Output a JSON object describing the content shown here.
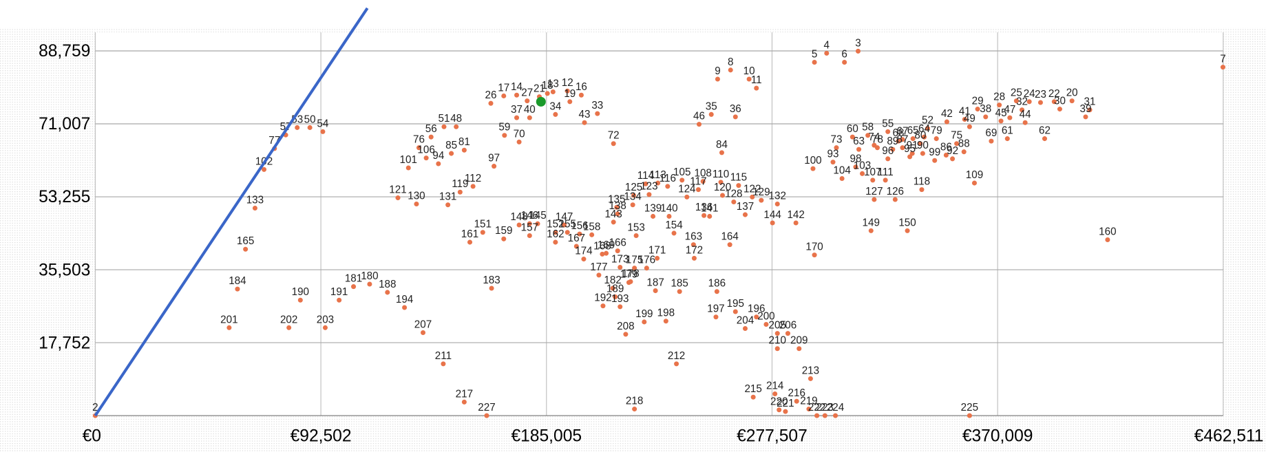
{
  "chart_data": {
    "type": "scatter",
    "color": "#e8734a",
    "grid": true,
    "xlim": [
      0,
      462511
    ],
    "ylim": [
      0,
      88759
    ],
    "xticks": [
      0,
      {
        "value": 92502,
        "label": "€92,502"
      },
      {
        "value": 185005,
        "label": "€185,005"
      },
      {
        "value": 277507,
        "label": "€277,507"
      },
      {
        "value": 370009,
        "label": "€370,009"
      },
      {
        "value": 462511,
        "label": "€462,511"
      }
    ],
    "xtick_zero_label": "€0",
    "yticks": [
      {
        "value": 17752,
        "label": "17,752"
      },
      {
        "value": 35503,
        "label": "35,503"
      },
      {
        "value": 53255,
        "label": "53,255"
      },
      {
        "value": 71007,
        "label": "71,007"
      },
      {
        "value": 88759,
        "label": "88,759"
      }
    ],
    "points": [
      {
        "label": "2",
        "x": 0,
        "y": 0
      },
      {
        "label": "201",
        "x": 54900,
        "y": 21400
      },
      {
        "label": "184",
        "x": 58300,
        "y": 30800
      },
      {
        "label": "165",
        "x": 61600,
        "y": 40500
      },
      {
        "label": "133",
        "x": 65500,
        "y": 50500
      },
      {
        "label": "102",
        "x": 69200,
        "y": 59900
      },
      {
        "label": "77",
        "x": 73500,
        "y": 65000
      },
      {
        "label": "57",
        "x": 78100,
        "y": 68300
      },
      {
        "label": "53",
        "x": 82800,
        "y": 70100
      },
      {
        "label": "50",
        "x": 88000,
        "y": 70100
      },
      {
        "label": "54",
        "x": 93300,
        "y": 69100
      },
      {
        "label": "202",
        "x": 79400,
        "y": 21400
      },
      {
        "label": "190",
        "x": 84100,
        "y": 28100
      },
      {
        "label": "203",
        "x": 94300,
        "y": 21400
      },
      {
        "label": "191",
        "x": 100000,
        "y": 28100
      },
      {
        "label": "181",
        "x": 105900,
        "y": 31400
      },
      {
        "label": "180",
        "x": 112500,
        "y": 32000
      },
      {
        "label": "188",
        "x": 119800,
        "y": 30000
      },
      {
        "label": "194",
        "x": 126800,
        "y": 26300
      },
      {
        "label": "207",
        "x": 134400,
        "y": 20200
      },
      {
        "label": "211",
        "x": 142700,
        "y": 12600
      },
      {
        "label": "217",
        "x": 151300,
        "y": 3300
      },
      {
        "label": "227",
        "x": 160500,
        "y": 0
      },
      {
        "label": "121",
        "x": 124100,
        "y": 53000
      },
      {
        "label": "130",
        "x": 131700,
        "y": 51500
      },
      {
        "label": "101",
        "x": 128400,
        "y": 60300
      },
      {
        "label": "106",
        "x": 135700,
        "y": 62700
      },
      {
        "label": "76",
        "x": 132700,
        "y": 65200
      },
      {
        "label": "56",
        "x": 137700,
        "y": 67800
      },
      {
        "label": "51",
        "x": 143000,
        "y": 70300
      },
      {
        "label": "48",
        "x": 148000,
        "y": 70300
      },
      {
        "label": "94",
        "x": 140700,
        "y": 61300
      },
      {
        "label": "85",
        "x": 146000,
        "y": 63800
      },
      {
        "label": "81",
        "x": 151300,
        "y": 64600
      },
      {
        "label": "131",
        "x": 144600,
        "y": 51300
      },
      {
        "label": "119",
        "x": 149600,
        "y": 54400
      },
      {
        "label": "112",
        "x": 154900,
        "y": 55800
      },
      {
        "label": "97",
        "x": 163500,
        "y": 60700
      },
      {
        "label": "161",
        "x": 153600,
        "y": 42200
      },
      {
        "label": "151",
        "x": 158900,
        "y": 44600
      },
      {
        "label": "159",
        "x": 167500,
        "y": 43000
      },
      {
        "label": "183",
        "x": 162500,
        "y": 31000
      },
      {
        "label": "26",
        "x": 162200,
        "y": 76000
      },
      {
        "label": "17",
        "x": 167500,
        "y": 77800
      },
      {
        "label": "14",
        "x": 172800,
        "y": 78000
      },
      {
        "label": "27",
        "x": 177100,
        "y": 76600
      },
      {
        "label": "37",
        "x": 172800,
        "y": 72500
      },
      {
        "label": "40",
        "x": 178100,
        "y": 72500
      },
      {
        "label": "59",
        "x": 167800,
        "y": 68200
      },
      {
        "label": "70",
        "x": 173800,
        "y": 66600
      },
      {
        "label": "21",
        "x": 182100,
        "y": 77600
      },
      {
        "label": "18",
        "x": 185400,
        "y": 78400
      },
      {
        "label": "13",
        "x": 187700,
        "y": 78800
      },
      {
        "label": "12",
        "x": 193600,
        "y": 79000
      },
      {
        "label": "19",
        "x": 194600,
        "y": 76400
      },
      {
        "label": "16",
        "x": 199300,
        "y": 78000
      },
      {
        "label": "34",
        "x": 188700,
        "y": 73300
      },
      {
        "label": "43",
        "x": 200600,
        "y": 71300
      },
      {
        "label": "33",
        "x": 205900,
        "y": 73500
      },
      {
        "label": "72",
        "x": 212500,
        "y": 66200
      },
      {
        "label": "148",
        "x": 173800,
        "y": 46400
      },
      {
        "label": "146",
        "x": 178100,
        "y": 46700
      },
      {
        "label": "145",
        "x": 181400,
        "y": 46700
      },
      {
        "label": "157",
        "x": 178100,
        "y": 43800
      },
      {
        "label": "147",
        "x": 192300,
        "y": 46400
      },
      {
        "label": "152",
        "x": 188700,
        "y": 44600
      },
      {
        "label": "162",
        "x": 188700,
        "y": 42200
      },
      {
        "label": "155",
        "x": 193600,
        "y": 44600
      },
      {
        "label": "156",
        "x": 198600,
        "y": 44200
      },
      {
        "label": "158",
        "x": 203600,
        "y": 44000
      },
      {
        "label": "167",
        "x": 197300,
        "y": 41200
      },
      {
        "label": "143",
        "x": 212500,
        "y": 47100
      },
      {
        "label": "174",
        "x": 200300,
        "y": 38100
      },
      {
        "label": "168",
        "x": 207900,
        "y": 39300
      },
      {
        "label": "169",
        "x": 209500,
        "y": 39500
      },
      {
        "label": "166",
        "x": 214200,
        "y": 40100
      },
      {
        "label": "173",
        "x": 215200,
        "y": 36100
      },
      {
        "label": "177",
        "x": 206500,
        "y": 34200
      },
      {
        "label": "135",
        "x": 213800,
        "y": 50700
      },
      {
        "label": "138",
        "x": 214200,
        "y": 49100
      },
      {
        "label": "134",
        "x": 220400,
        "y": 51300
      },
      {
        "label": "125",
        "x": 220800,
        "y": 53600
      },
      {
        "label": "123",
        "x": 227100,
        "y": 53800
      },
      {
        "label": "153",
        "x": 221800,
        "y": 43800
      },
      {
        "label": "171",
        "x": 230400,
        "y": 38300
      },
      {
        "label": "175",
        "x": 221100,
        "y": 35900
      },
      {
        "label": "176",
        "x": 226100,
        "y": 35900
      },
      {
        "label": "182",
        "x": 212200,
        "y": 31000
      },
      {
        "label": "178",
        "x": 219500,
        "y": 32600
      },
      {
        "label": "179",
        "x": 218800,
        "y": 32400
      },
      {
        "label": "189",
        "x": 213200,
        "y": 28900
      },
      {
        "label": "192",
        "x": 208200,
        "y": 26700
      },
      {
        "label": "193",
        "x": 215200,
        "y": 26500
      },
      {
        "label": "187",
        "x": 229700,
        "y": 30400
      },
      {
        "label": "185",
        "x": 239600,
        "y": 30200
      },
      {
        "label": "186",
        "x": 254900,
        "y": 30200
      },
      {
        "label": "199",
        "x": 225100,
        "y": 22800
      },
      {
        "label": "198",
        "x": 234000,
        "y": 23000
      },
      {
        "label": "208",
        "x": 217500,
        "y": 19800
      },
      {
        "label": "212",
        "x": 238300,
        "y": 12600
      },
      {
        "label": "218",
        "x": 221100,
        "y": 1600
      },
      {
        "label": "114",
        "x": 225700,
        "y": 56400
      },
      {
        "label": "113",
        "x": 230700,
        "y": 56600
      },
      {
        "label": "116",
        "x": 234700,
        "y": 55800
      },
      {
        "label": "124",
        "x": 242600,
        "y": 53200
      },
      {
        "label": "139",
        "x": 228700,
        "y": 48500
      },
      {
        "label": "140",
        "x": 235300,
        "y": 48500
      },
      {
        "label": "154",
        "x": 237300,
        "y": 44400
      },
      {
        "label": "163",
        "x": 245300,
        "y": 41600
      },
      {
        "label": "172",
        "x": 245600,
        "y": 38300
      },
      {
        "label": "105",
        "x": 240600,
        "y": 57300
      },
      {
        "label": "117",
        "x": 247300,
        "y": 55000
      },
      {
        "label": "108",
        "x": 249200,
        "y": 57000
      },
      {
        "label": "110",
        "x": 256500,
        "y": 56800
      },
      {
        "label": "120",
        "x": 257200,
        "y": 53600
      },
      {
        "label": "128",
        "x": 261800,
        "y": 52000
      },
      {
        "label": "115",
        "x": 263800,
        "y": 56000
      },
      {
        "label": "136",
        "x": 249600,
        "y": 48700
      },
      {
        "label": "141",
        "x": 251900,
        "y": 48500
      },
      {
        "label": "137",
        "x": 266500,
        "y": 48900
      },
      {
        "label": "122",
        "x": 269400,
        "y": 53200
      },
      {
        "label": "129",
        "x": 273100,
        "y": 52400
      },
      {
        "label": "132",
        "x": 279700,
        "y": 51500
      },
      {
        "label": "144",
        "x": 277700,
        "y": 46900
      },
      {
        "label": "142",
        "x": 287300,
        "y": 46900
      },
      {
        "label": "164",
        "x": 260200,
        "y": 41600
      },
      {
        "label": "170",
        "x": 294900,
        "y": 39100
      },
      {
        "label": "197",
        "x": 254500,
        "y": 24000
      },
      {
        "label": "195",
        "x": 262500,
        "y": 25300
      },
      {
        "label": "196",
        "x": 271100,
        "y": 24000
      },
      {
        "label": "204",
        "x": 266500,
        "y": 21200
      },
      {
        "label": "200",
        "x": 275100,
        "y": 22200
      },
      {
        "label": "205",
        "x": 279700,
        "y": 20000
      },
      {
        "label": "206",
        "x": 284000,
        "y": 20000
      },
      {
        "label": "210",
        "x": 279700,
        "y": 16300
      },
      {
        "label": "209",
        "x": 288600,
        "y": 16300
      },
      {
        "label": "213",
        "x": 293300,
        "y": 9000
      },
      {
        "label": "215",
        "x": 269800,
        "y": 4500
      },
      {
        "label": "214",
        "x": 278700,
        "y": 5300
      },
      {
        "label": "216",
        "x": 287600,
        "y": 3500
      },
      {
        "label": "220",
        "x": 280400,
        "y": 1400
      },
      {
        "label": "221",
        "x": 283000,
        "y": 1000
      },
      {
        "label": "219",
        "x": 292600,
        "y": 1600
      },
      {
        "label": "222",
        "x": 295900,
        "y": 0
      },
      {
        "label": "223",
        "x": 299200,
        "y": 0
      },
      {
        "label": "224",
        "x": 303500,
        "y": 0
      },
      {
        "label": "225",
        "x": 358500,
        "y": 0
      },
      {
        "label": "9",
        "x": 255200,
        "y": 81900
      },
      {
        "label": "8",
        "x": 260500,
        "y": 84100
      },
      {
        "label": "10",
        "x": 268100,
        "y": 81900
      },
      {
        "label": "11",
        "x": 271100,
        "y": 79700
      },
      {
        "label": "46",
        "x": 247600,
        "y": 70900
      },
      {
        "label": "35",
        "x": 252600,
        "y": 73300
      },
      {
        "label": "36",
        "x": 262500,
        "y": 72700
      },
      {
        "label": "84",
        "x": 256900,
        "y": 64000
      },
      {
        "label": "5",
        "x": 294900,
        "y": 86000
      },
      {
        "label": "4",
        "x": 299900,
        "y": 88200
      },
      {
        "label": "6",
        "x": 307200,
        "y": 86000
      },
      {
        "label": "3",
        "x": 312800,
        "y": 88700
      },
      {
        "label": "100",
        "x": 294300,
        "y": 60100
      },
      {
        "label": "73",
        "x": 303900,
        "y": 65200
      },
      {
        "label": "93",
        "x": 302500,
        "y": 61700
      },
      {
        "label": "98",
        "x": 311800,
        "y": 60500
      },
      {
        "label": "104",
        "x": 306200,
        "y": 57700
      },
      {
        "label": "103",
        "x": 314500,
        "y": 58900
      },
      {
        "label": "60",
        "x": 310500,
        "y": 67800
      },
      {
        "label": "63",
        "x": 313100,
        "y": 64800
      },
      {
        "label": "58",
        "x": 316800,
        "y": 68200
      },
      {
        "label": "74",
        "x": 319400,
        "y": 65800
      },
      {
        "label": "78",
        "x": 320700,
        "y": 65200
      },
      {
        "label": "107",
        "x": 318800,
        "y": 57300
      },
      {
        "label": "111",
        "x": 324000,
        "y": 57300
      },
      {
        "label": "127",
        "x": 319400,
        "y": 52600
      },
      {
        "label": "126",
        "x": 328000,
        "y": 52600
      },
      {
        "label": "149",
        "x": 318100,
        "y": 45000
      },
      {
        "label": "150",
        "x": 333000,
        "y": 45000
      },
      {
        "label": "55",
        "x": 325000,
        "y": 69100
      },
      {
        "label": "96",
        "x": 325000,
        "y": 62500
      },
      {
        "label": "95",
        "x": 334000,
        "y": 63000
      },
      {
        "label": "118",
        "x": 338900,
        "y": 55000
      },
      {
        "label": "99",
        "x": 344200,
        "y": 62100
      },
      {
        "label": "52",
        "x": 341300,
        "y": 69900
      },
      {
        "label": "42",
        "x": 349200,
        "y": 71500
      },
      {
        "label": "41",
        "x": 356500,
        "y": 72100
      },
      {
        "label": "49",
        "x": 358500,
        "y": 70300
      },
      {
        "label": "75",
        "x": 353200,
        "y": 66200
      },
      {
        "label": "86",
        "x": 348900,
        "y": 63400
      },
      {
        "label": "88",
        "x": 356200,
        "y": 64200
      },
      {
        "label": "92",
        "x": 351500,
        "y": 62500
      },
      {
        "label": "90",
        "x": 339300,
        "y": 63800
      },
      {
        "label": "109",
        "x": 360500,
        "y": 56600
      },
      {
        "label": "64",
        "x": 339900,
        "y": 67800
      },
      {
        "label": "65",
        "x": 335300,
        "y": 67400
      },
      {
        "label": "67",
        "x": 331000,
        "y": 67200
      },
      {
        "label": "68",
        "x": 329300,
        "y": 66800
      },
      {
        "label": "80",
        "x": 338300,
        "y": 66200
      },
      {
        "label": "87",
        "x": 331000,
        "y": 65200
      },
      {
        "label": "89",
        "x": 327000,
        "y": 64800
      },
      {
        "label": "91",
        "x": 335000,
        "y": 63800
      },
      {
        "label": "79",
        "x": 344900,
        "y": 67400
      },
      {
        "label": "29",
        "x": 361800,
        "y": 74600
      },
      {
        "label": "38",
        "x": 365100,
        "y": 72700
      },
      {
        "label": "28",
        "x": 370700,
        "y": 75600
      },
      {
        "label": "45",
        "x": 371400,
        "y": 71700
      },
      {
        "label": "47",
        "x": 375000,
        "y": 72500
      },
      {
        "label": "69",
        "x": 367400,
        "y": 66800
      },
      {
        "label": "61",
        "x": 374000,
        "y": 67400
      },
      {
        "label": "44",
        "x": 381300,
        "y": 71300
      },
      {
        "label": "25",
        "x": 377700,
        "y": 76600
      },
      {
        "label": "24",
        "x": 383000,
        "y": 76400
      },
      {
        "label": "32",
        "x": 380000,
        "y": 74400
      },
      {
        "label": "23",
        "x": 387600,
        "y": 76200
      },
      {
        "label": "22",
        "x": 393200,
        "y": 76400
      },
      {
        "label": "30",
        "x": 395500,
        "y": 74600
      },
      {
        "label": "20",
        "x": 400500,
        "y": 76600
      },
      {
        "label": "31",
        "x": 407800,
        "y": 74400
      },
      {
        "label": "39",
        "x": 406100,
        "y": 72700
      },
      {
        "label": "62",
        "x": 389300,
        "y": 67400
      },
      {
        "label": "7",
        "x": 462400,
        "y": 84800
      },
      {
        "label": "160",
        "x": 415100,
        "y": 42800
      }
    ]
  }
}
